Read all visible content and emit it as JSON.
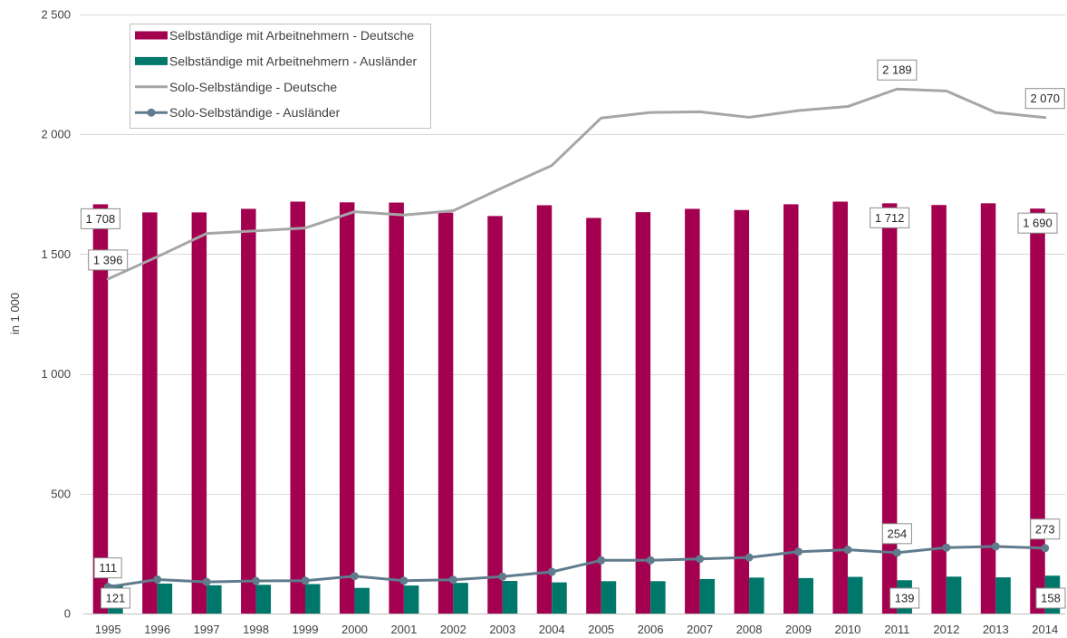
{
  "chart_data": {
    "type": "bar",
    "categories": [
      "1995",
      "1996",
      "1997",
      "1998",
      "1999",
      "2000",
      "2001",
      "2002",
      "2003",
      "2004",
      "2005",
      "2006",
      "2007",
      "2008",
      "2009",
      "2010",
      "2011",
      "2012",
      "2013",
      "2014"
    ],
    "series": [
      {
        "name": "Selbständige mit Arbeitnehmern - Deutsche",
        "type": "bar",
        "color": "#A30050",
        "values": [
          1708,
          1674,
          1674,
          1689,
          1719,
          1716,
          1715,
          1673,
          1659,
          1704,
          1651,
          1675,
          1689,
          1684,
          1708,
          1719,
          1712,
          1705,
          1712,
          1690
        ],
        "data_labels": [
          {
            "category": "1995",
            "text": "1 708"
          },
          {
            "category": "2011",
            "text": "1 712"
          },
          {
            "category": "2014",
            "text": "1 690"
          }
        ]
      },
      {
        "name": "Selbständige mit Arbeitnehmern - Ausländer",
        "type": "bar",
        "color": "#00776B",
        "values": [
          121,
          125,
          118,
          120,
          123,
          107,
          117,
          128,
          136,
          130,
          135,
          135,
          144,
          150,
          148,
          153,
          139,
          154,
          151,
          158
        ],
        "data_labels": [
          {
            "category": "1995",
            "text": "121"
          },
          {
            "category": "2011",
            "text": "139"
          },
          {
            "category": "2014",
            "text": "158"
          }
        ]
      },
      {
        "name": "Solo-Selbständige - Deutsche",
        "type": "line",
        "marker": "none",
        "color": "#A6A6A6",
        "values": [
          1396,
          1489,
          1586,
          1597,
          1609,
          1677,
          1663,
          1681,
          1777,
          1870,
          2068,
          2091,
          2094,
          2071,
          2099,
          2116,
          2189,
          2181,
          2091,
          2070
        ],
        "data_labels": [
          {
            "category": "1995",
            "text": "1 396"
          },
          {
            "category": "2011",
            "text": "2 189"
          },
          {
            "category": "2014",
            "text": "2 070"
          }
        ]
      },
      {
        "name": "Solo-Selbständige - Ausländer",
        "type": "line",
        "marker": "circle",
        "color": "#5F7B8C",
        "values": [
          111,
          142,
          132,
          136,
          137,
          156,
          137,
          141,
          154,
          174,
          222,
          222,
          228,
          234,
          258,
          266,
          254,
          275,
          280,
          273
        ],
        "data_labels": [
          {
            "category": "1995",
            "text": "111"
          },
          {
            "category": "2011",
            "text": "254"
          },
          {
            "category": "2014",
            "text": "273"
          }
        ]
      }
    ],
    "xlabel": "",
    "ylabel": "in 1 000",
    "ylim": [
      0,
      2500
    ],
    "yticks": [
      0,
      500,
      1000,
      1500,
      2000,
      2500
    ],
    "ytick_labels": [
      "0",
      "500",
      "1 000",
      "1 500",
      "2 000",
      "2 500"
    ],
    "grid": true,
    "legend": "top-left"
  }
}
